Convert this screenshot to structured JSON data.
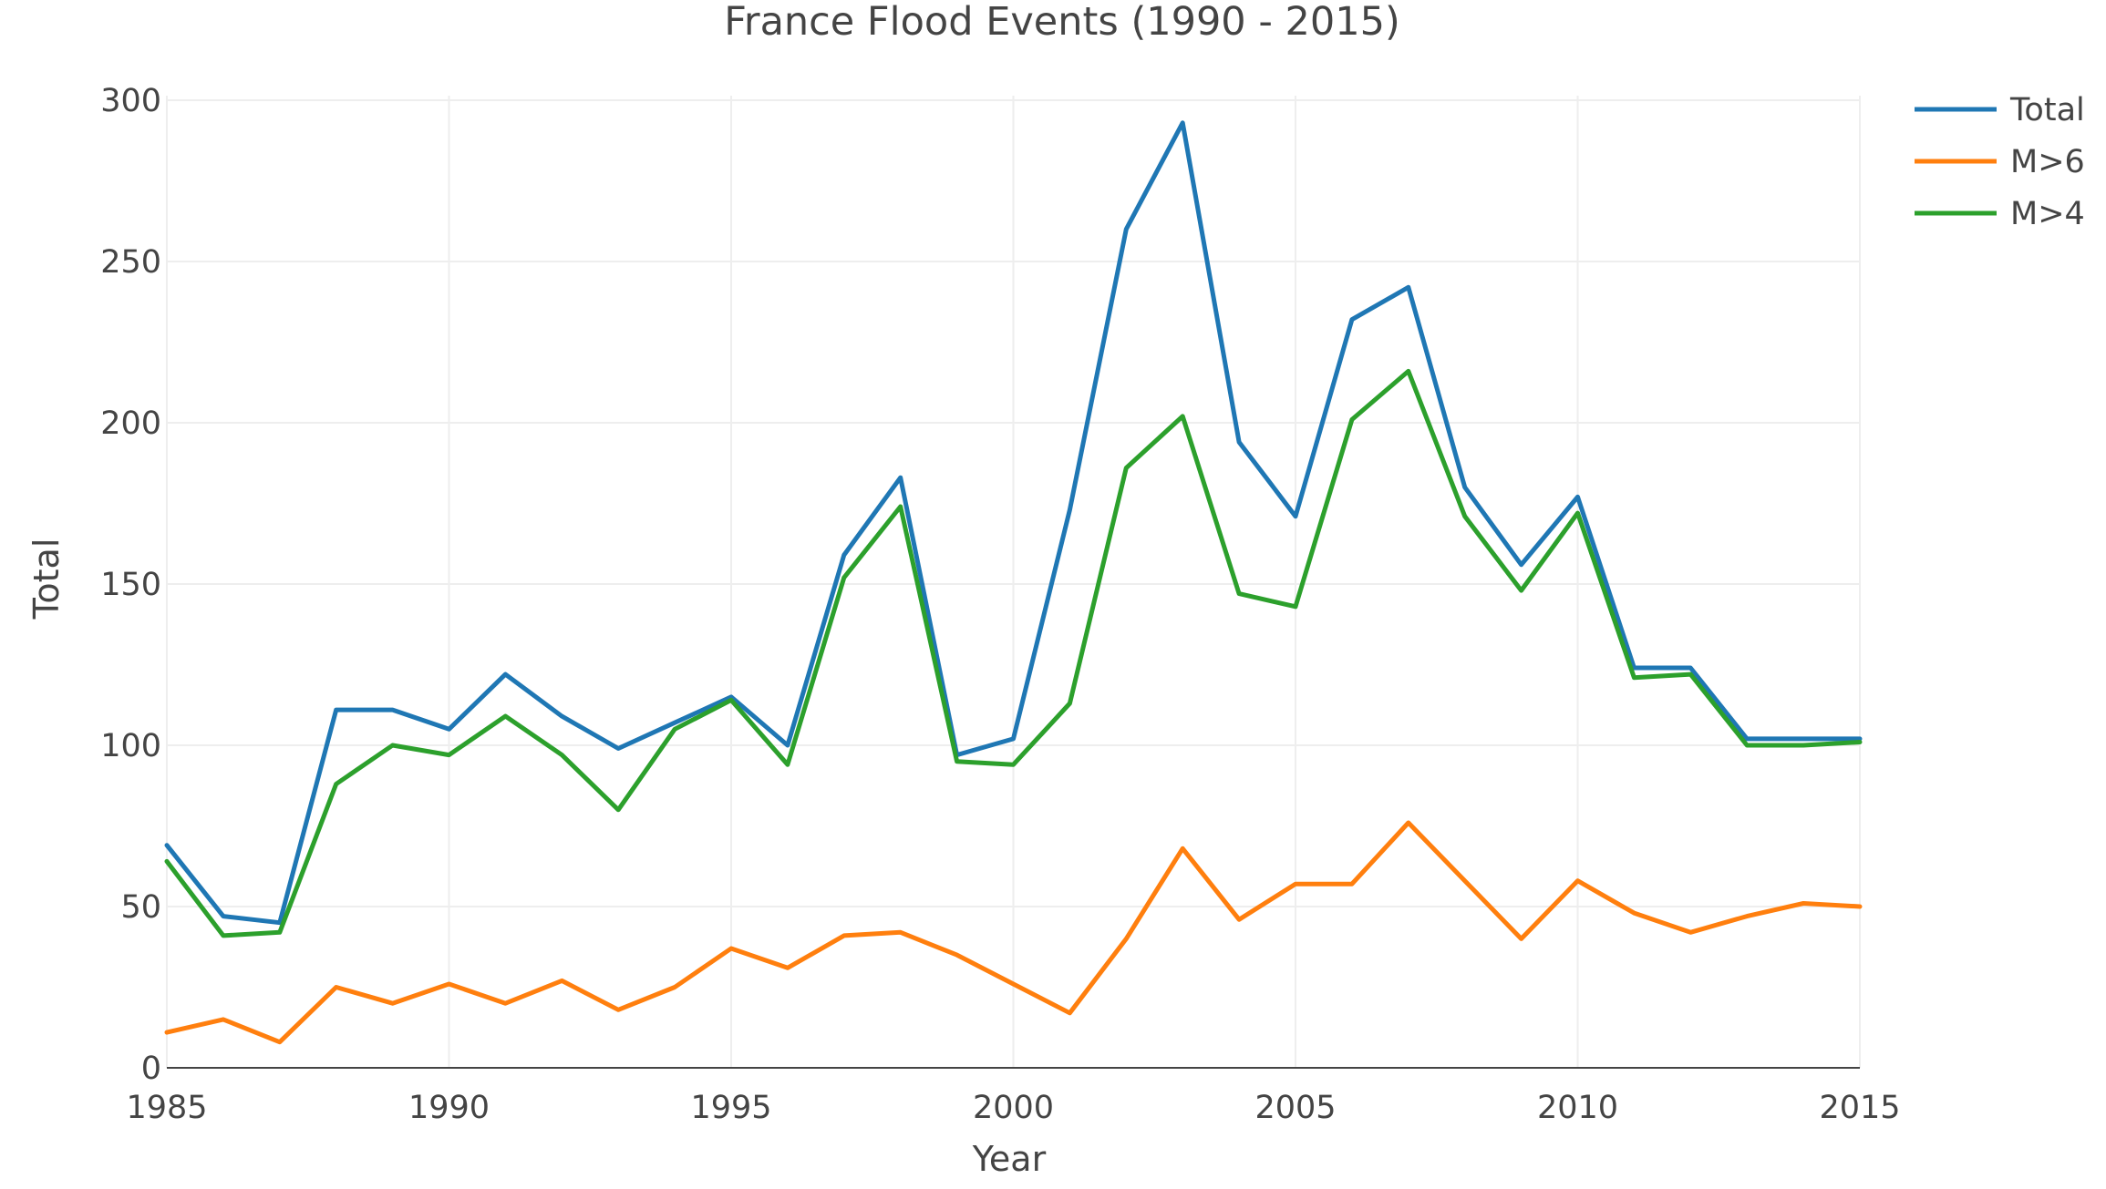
{
  "chart_data": {
    "type": "line",
    "title": "France Flood Events (1990 - 2015)",
    "xlabel": "Year",
    "ylabel": "Total",
    "xlim": [
      1985,
      2015
    ],
    "ylim": [
      0,
      300
    ],
    "xticks": [
      "1985",
      "1990",
      "1995",
      "2000",
      "2005",
      "2010",
      "2015"
    ],
    "yticks": [
      "0",
      "50",
      "100",
      "150",
      "200",
      "250",
      "300"
    ],
    "grid": true,
    "legend_position": "top-right",
    "x": [
      1985,
      1986,
      1987,
      1988,
      1989,
      1990,
      1991,
      1992,
      1993,
      1994,
      1995,
      1996,
      1997,
      1998,
      1999,
      2000,
      2001,
      2002,
      2003,
      2004,
      2005,
      2006,
      2007,
      2008,
      2009,
      2010,
      2011,
      2012,
      2013,
      2014,
      2015
    ],
    "series": [
      {
        "name": "Total",
        "color": "#1f77b4",
        "values": [
          69,
          47,
          45,
          111,
          111,
          105,
          122,
          109,
          99,
          107,
          115,
          100,
          159,
          183,
          97,
          102,
          173,
          260,
          293,
          194,
          171,
          232,
          242,
          180,
          156,
          177,
          124,
          124,
          102,
          102,
          102
        ]
      },
      {
        "name": "M>6",
        "color": "#ff7f0e",
        "values": [
          11,
          15,
          8,
          25,
          20,
          26,
          20,
          27,
          18,
          25,
          37,
          31,
          41,
          42,
          35,
          26,
          17,
          40,
          68,
          46,
          57,
          57,
          76,
          58,
          40,
          58,
          48,
          42,
          47,
          51,
          50
        ]
      },
      {
        "name": "M>4",
        "color": "#2ca02c",
        "values": [
          64,
          41,
          42,
          88,
          100,
          97,
          109,
          97,
          80,
          105,
          114,
          94,
          152,
          174,
          95,
          94,
          113,
          186,
          202,
          147,
          143,
          201,
          216,
          171,
          148,
          172,
          121,
          122,
          100,
          100,
          101
        ]
      }
    ]
  }
}
